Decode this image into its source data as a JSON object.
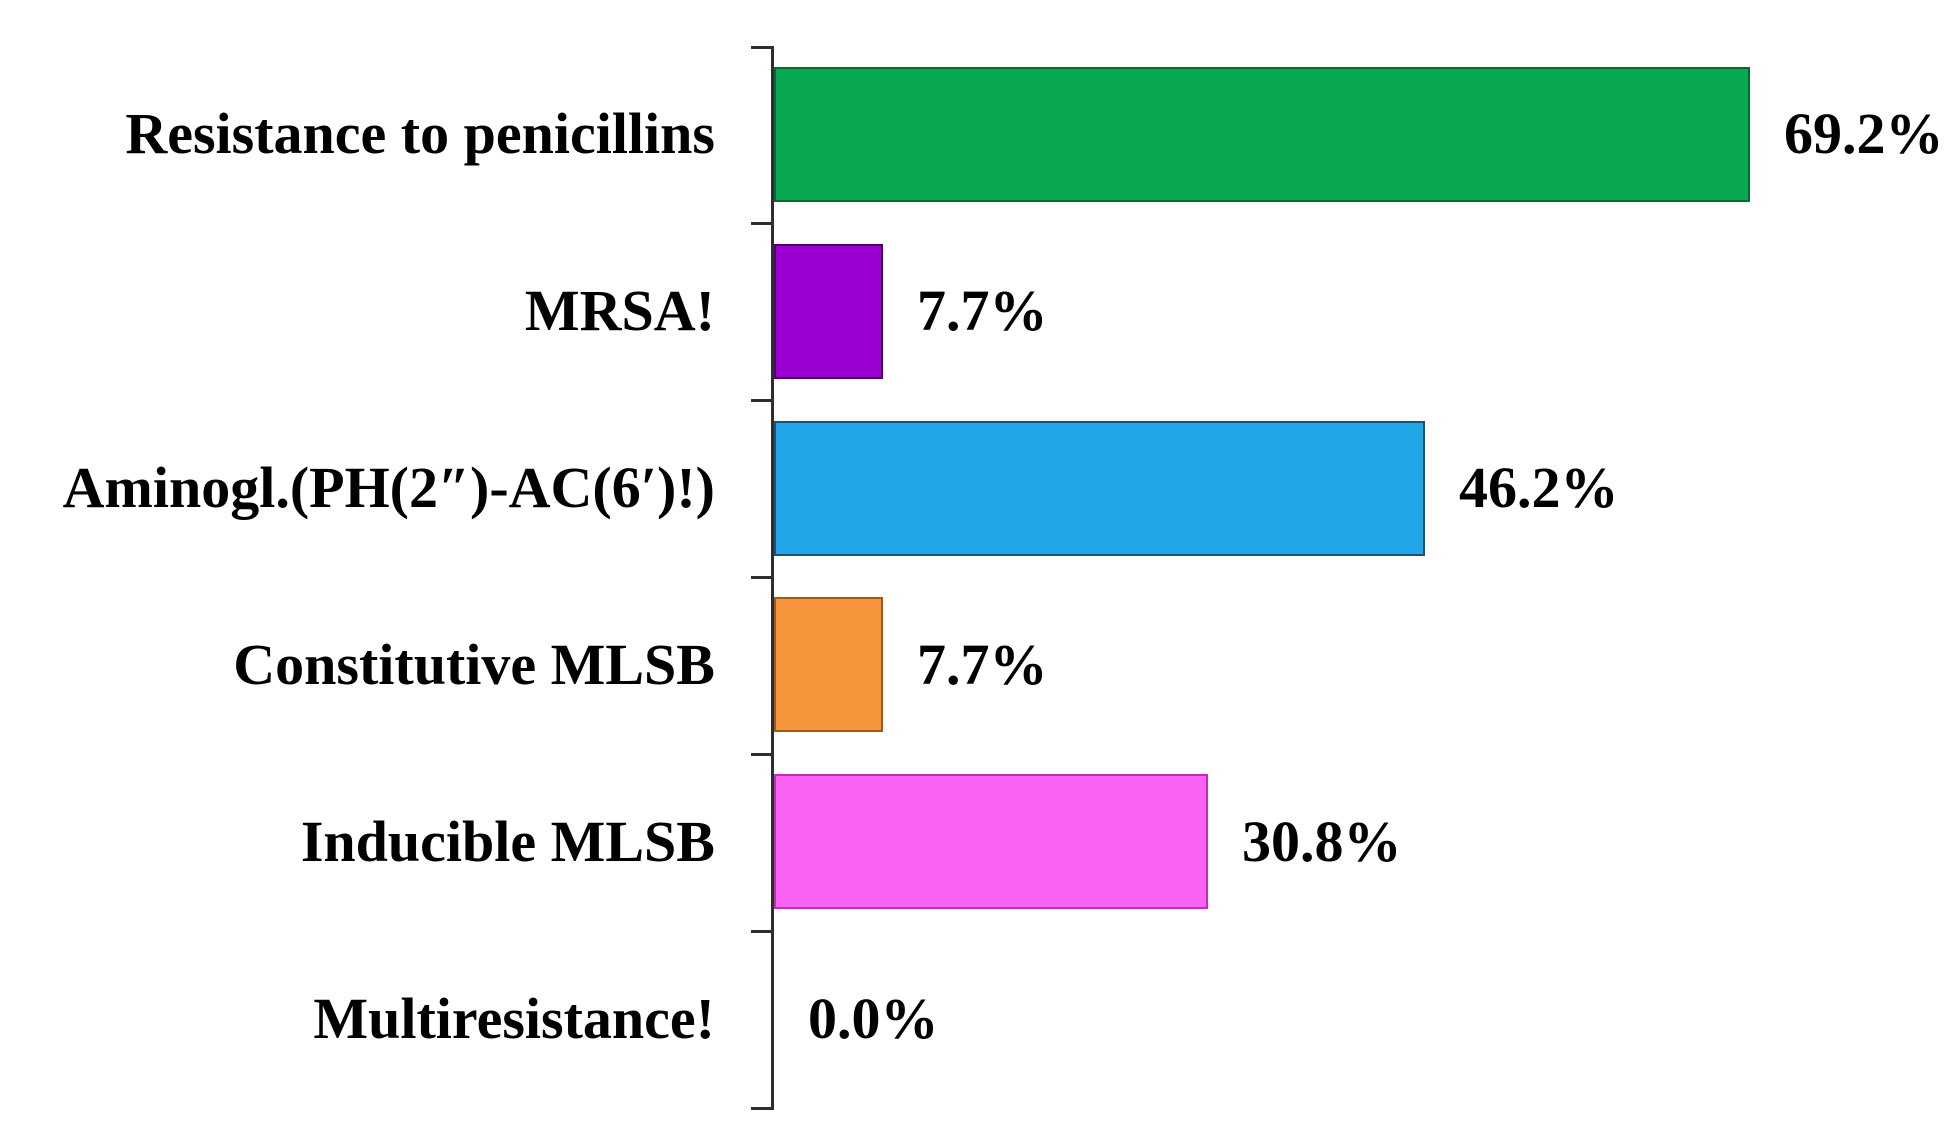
{
  "chart_data": {
    "type": "bar",
    "orientation": "horizontal",
    "title": "",
    "xlabel": "",
    "ylabel": "",
    "grid": false,
    "legend": false,
    "background": "#ffffff",
    "axis_color": "#2e2e2e",
    "text_color": "#000000",
    "categories": [
      "Resistance to penicillins",
      "MRSA!",
      "Aminogl.(PH(2″)-AC(6′)!)",
      "Constitutive MLSB",
      "Inducible MLSB",
      "Multiresistance!"
    ],
    "values": [
      69.2,
      7.7,
      46.2,
      7.7,
      30.8,
      0.0
    ],
    "value_labels": [
      "69.2%",
      "7.7%",
      "46.2%",
      "7.7%",
      "30.8%",
      "0.0%"
    ],
    "bar_colors": [
      "#08a751",
      "#9a00d0",
      "#21a7e8",
      "#f7953c",
      "#fa62f2",
      null
    ],
    "bar_border_colors": [
      "#056b33",
      "#4d0168",
      "#15557c",
      "#a35a12",
      "#c12cbc",
      null
    ]
  }
}
